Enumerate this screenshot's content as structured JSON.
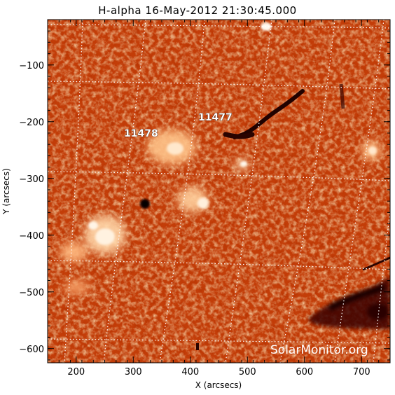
{
  "title": "H-alpha 16-May-2012 21:30:45.000",
  "axes": {
    "xlabel": "X (arcsecs)",
    "ylabel": "Y (arcsecs)",
    "xlim": [
      150,
      750
    ],
    "ylim": [
      -625,
      -20
    ],
    "xticks": [
      200,
      300,
      400,
      500,
      600,
      700
    ],
    "yticks": [
      -100,
      -200,
      -300,
      -400,
      -500,
      -600
    ]
  },
  "regions": [
    {
      "label": "11477"
    },
    {
      "label": "11478"
    }
  ],
  "watermark": "SolarMonitor.org",
  "colors": {
    "chromosphere_dark": "#a41c00",
    "chromosphere_mid": "#d85a14",
    "plage_bright": "#ffe8c8",
    "filament": "#240300",
    "grid": "#ffffff"
  }
}
